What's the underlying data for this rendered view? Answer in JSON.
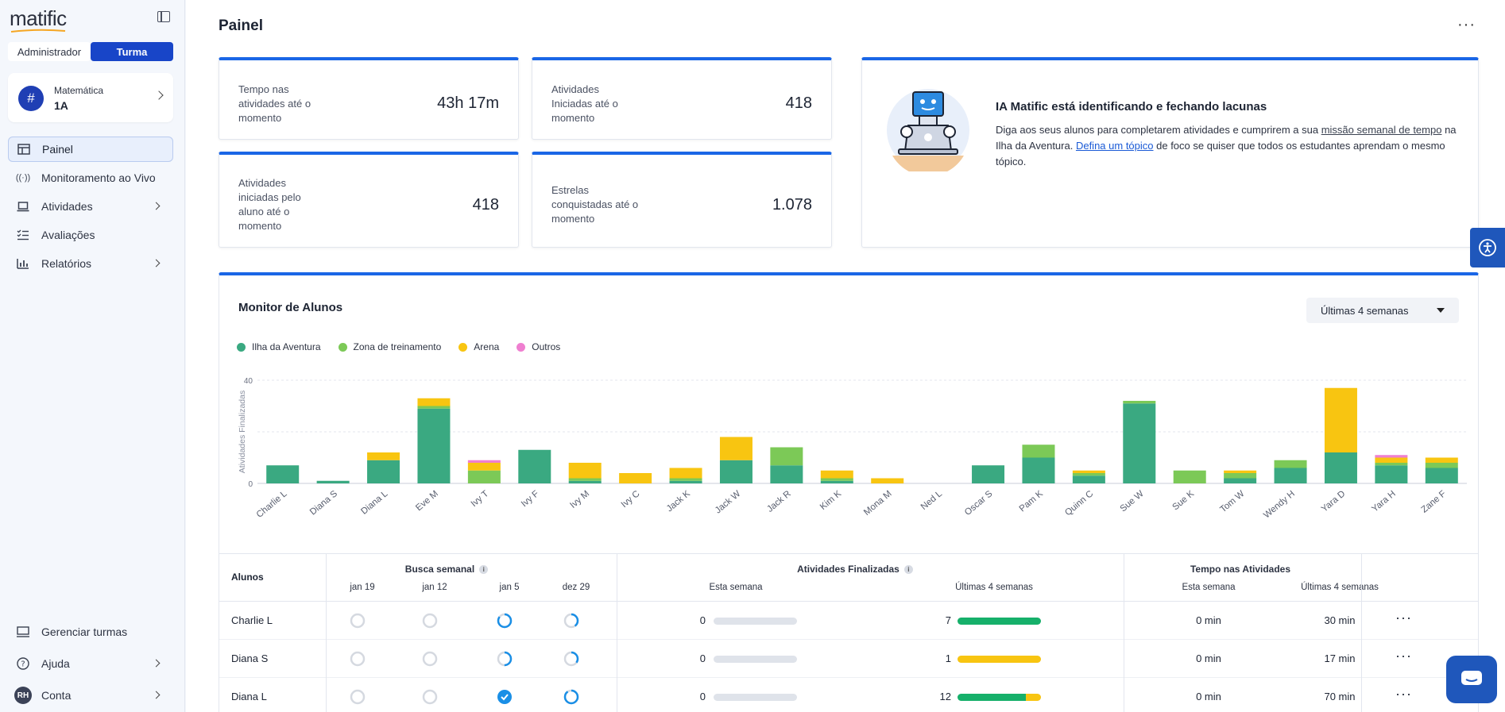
{
  "sidebar": {
    "logo": "matific",
    "roles": [
      "Administrador",
      "Turma"
    ],
    "active_role": "Turma",
    "class_card": {
      "subject": "Matemática",
      "name": "1A"
    },
    "nav": [
      {
        "label": "Painel",
        "icon": "dashboard-icon",
        "active": true,
        "chevron": false
      },
      {
        "label": "Monitoramento ao Vivo",
        "icon": "broadcast-icon",
        "active": false,
        "chevron": false
      },
      {
        "label": "Atividades",
        "icon": "laptop-icon",
        "active": false,
        "chevron": true
      },
      {
        "label": "Avaliações",
        "icon": "checklist-icon",
        "active": false,
        "chevron": false
      },
      {
        "label": "Relatórios",
        "icon": "bar-chart-icon",
        "active": false,
        "chevron": true
      }
    ],
    "bottom": {
      "manage": "Gerenciar turmas",
      "help": "Ajuda",
      "account": "Conta",
      "account_initials": "RH"
    }
  },
  "header": {
    "title": "Painel",
    "more": "···"
  },
  "stats": [
    {
      "label": "Tempo nas atividades até o momento",
      "value": "43h 17m"
    },
    {
      "label": "Atividades Iniciadas até o momento",
      "value": "418"
    },
    {
      "label": "Atividades iniciadas pelo aluno até o momento",
      "value": "418"
    },
    {
      "label": "Estrelas conquistadas até o momento",
      "value": "1.078"
    }
  ],
  "ai_card": {
    "title": "IA Matific está identificando e fechando lacunas",
    "text1": "Diga aos seus alunos para completarem atividades e cumprirem a sua ",
    "link1": "missão semanal de tempo",
    "text2": " na Ilha da Aventura. ",
    "link2": "Defina um tópico",
    "text3": " de foco se quiser que todos os estudantes aprendam o mesmo tópico."
  },
  "monitor": {
    "title": "Monitor de Alunos",
    "range": "Últimas 4 semanas"
  },
  "colors": {
    "ilha": "#3aa981",
    "zona": "#7cc957",
    "arena": "#f8c511",
    "outros": "#ef7fd0",
    "accent": "#1a66e6"
  },
  "chart_data": {
    "type": "bar",
    "stacked": true,
    "ylabel": "Atividades Finalizadas",
    "ylim": [
      0,
      40
    ],
    "yticks": [
      0,
      40
    ],
    "legend_position": "top-left",
    "categories": [
      "Charlie L",
      "Diana S",
      "Diana L",
      "Eve M",
      "Ivy T",
      "Ivy F",
      "Ivy M",
      "Ivy C",
      "Jack K",
      "Jack W",
      "Jack R",
      "Kim K",
      "Mona M",
      "Ned L",
      "Oscar S",
      "Pam K",
      "Quinn C",
      "Sue W",
      "Sue K",
      "Tom W",
      "Wendy H",
      "Yara D",
      "Yara H",
      "Zane F"
    ],
    "series": [
      {
        "name": "Ilha da Aventura",
        "values": [
          7,
          1,
          9,
          29,
          0,
          13,
          1,
          0,
          1,
          9,
          7,
          1,
          0,
          0,
          7,
          10,
          3,
          31,
          0,
          2,
          6,
          12,
          7,
          6
        ]
      },
      {
        "name": "Zona de treinamento",
        "values": [
          0,
          0,
          0,
          1,
          5,
          0,
          1,
          0,
          1,
          0,
          7,
          1,
          0,
          0,
          0,
          5,
          1,
          1,
          5,
          2,
          3,
          0,
          1,
          2
        ]
      },
      {
        "name": "Arena",
        "values": [
          0,
          0,
          3,
          3,
          3,
          0,
          6,
          4,
          4,
          9,
          0,
          3,
          2,
          0,
          0,
          0,
          1,
          0,
          0,
          1,
          0,
          25,
          2,
          2
        ]
      },
      {
        "name": "Outros",
        "values": [
          0,
          0,
          0,
          0,
          1,
          0,
          0,
          0,
          0,
          0,
          0,
          0,
          0,
          0,
          0,
          0,
          0,
          0,
          0,
          0,
          0,
          0,
          1,
          0
        ]
      }
    ]
  },
  "table": {
    "col_students": "Alunos",
    "group_search": "Busca semanal",
    "weeks": [
      "jan 19",
      "jan 12",
      "jan 5",
      "dez 29"
    ],
    "group_finished": "Atividades Finalizadas",
    "group_time": "Tempo nas Atividades",
    "this_week": "Esta semana",
    "last4": "Últimas 4 semanas",
    "rows": [
      {
        "name": "Charlie L",
        "search": [
          0,
          0,
          0.85,
          0.4
        ],
        "fin_week": "0",
        "fin_4w": "7",
        "fin_4w_fill": [
          {
            "p": 1.0,
            "c": "green"
          }
        ],
        "time_week": "0 min",
        "time_4w": "30 min"
      },
      {
        "name": "Diana S",
        "search": [
          0,
          0,
          0.5,
          0.35
        ],
        "fin_week": "0",
        "fin_4w": "1",
        "fin_4w_fill": [
          {
            "p": 1.0,
            "c": "yellow"
          }
        ],
        "time_week": "0 min",
        "time_4w": "17 min"
      },
      {
        "name": "Diana L",
        "search": [
          0,
          0,
          1,
          0.9
        ],
        "fin_week": "0",
        "fin_4w": "12",
        "fin_4w_fill": [
          {
            "p": 0.82,
            "c": "green"
          },
          {
            "p": 0.18,
            "c": "yellow"
          }
        ],
        "time_week": "0 min",
        "time_4w": "70 min"
      }
    ]
  }
}
